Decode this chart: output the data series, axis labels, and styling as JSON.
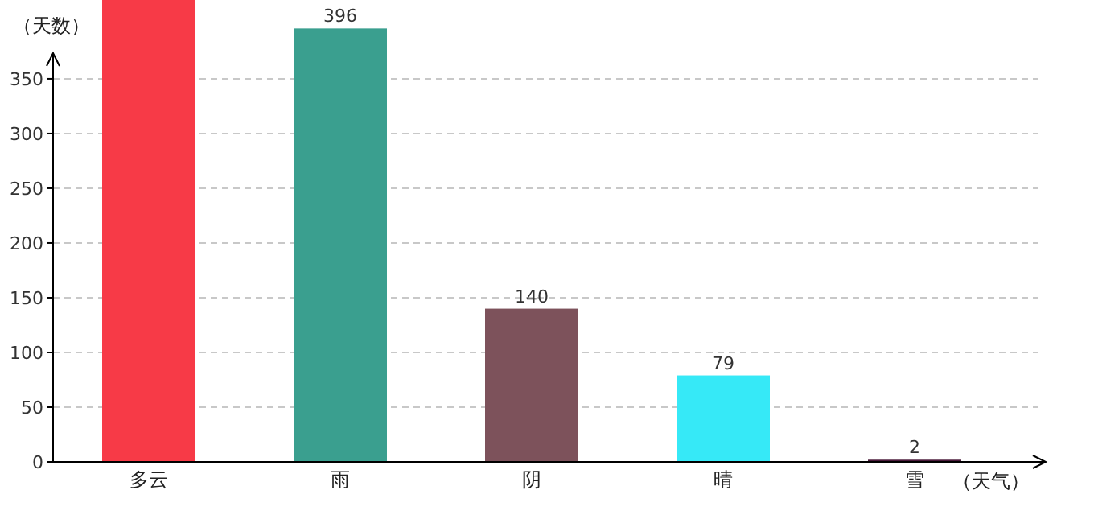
{
  "chart_data": {
    "type": "bar",
    "ylabel": "（天数）",
    "xlabel": "（天气）",
    "categories": [
      "多云",
      "雨",
      "阴",
      "晴",
      "雪"
    ],
    "values": [
      422,
      396,
      140,
      79,
      2
    ],
    "colors": [
      "#f73a47",
      "#3a9f8f",
      "#7d525b",
      "#36e9f7",
      "#4a1a3a"
    ],
    "value_labels": [
      null,
      "396",
      "140",
      "79",
      "2"
    ],
    "ylim": [
      0,
      422
    ],
    "yticks": [
      0,
      50,
      100,
      150,
      200,
      250,
      300,
      350
    ],
    "grid": "y"
  }
}
